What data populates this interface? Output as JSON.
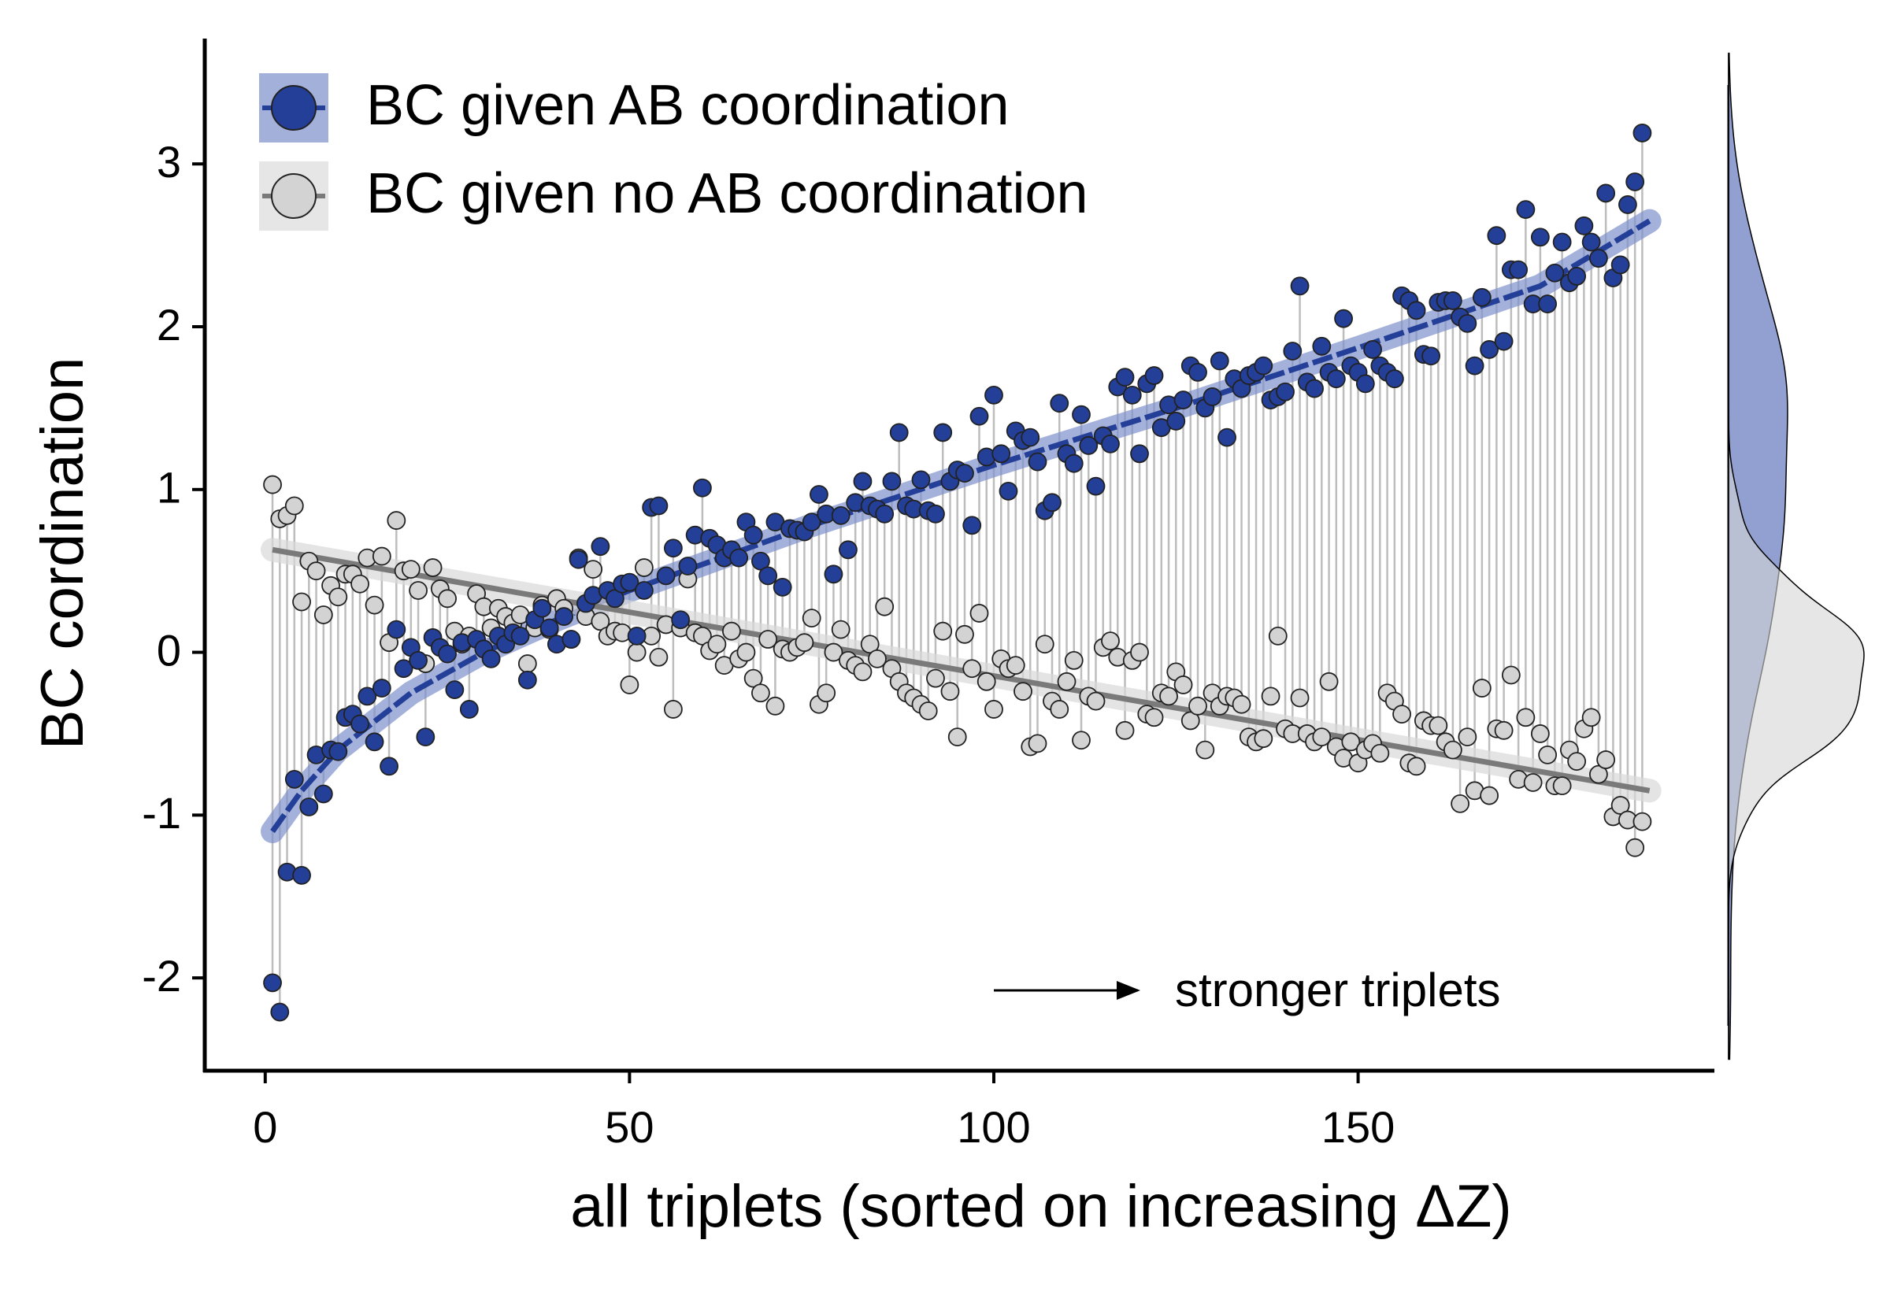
{
  "chart_data": {
    "type": "scatter",
    "xlabel": "all triplets (sorted on increasing ΔZ)",
    "ylabel": "BC cordination",
    "annotation": "stronger triplets",
    "legend": "top-left",
    "xlim": [
      -8.3,
      198.9
    ],
    "ylim": [
      -2.57,
      3.77
    ],
    "xticks": [
      0,
      50,
      100,
      150
    ],
    "yticks": [
      -2,
      -1,
      0,
      1,
      2,
      3
    ],
    "x": [
      1,
      2,
      3,
      4,
      5,
      6,
      7,
      8,
      9,
      10,
      11,
      12,
      13,
      14,
      15,
      16,
      17,
      18,
      19,
      20,
      21,
      22,
      23,
      24,
      25,
      26,
      27,
      28,
      29,
      30,
      31,
      32,
      33,
      34,
      35,
      36,
      37,
      38,
      39,
      40,
      41,
      42,
      43,
      44,
      45,
      46,
      47,
      48,
      49,
      50,
      51,
      52,
      53,
      54,
      55,
      56,
      57,
      58,
      59,
      60,
      61,
      62,
      63,
      64,
      65,
      66,
      67,
      68,
      69,
      70,
      71,
      72,
      73,
      74,
      75,
      76,
      77,
      78,
      79,
      80,
      81,
      82,
      83,
      84,
      85,
      86,
      87,
      88,
      89,
      90,
      91,
      92,
      93,
      94,
      95,
      96,
      97,
      98,
      99,
      100,
      101,
      102,
      103,
      104,
      105,
      106,
      107,
      108,
      109,
      110,
      111,
      112,
      113,
      114,
      115,
      116,
      117,
      118,
      119,
      120,
      121,
      122,
      123,
      124,
      125,
      126,
      127,
      128,
      129,
      130,
      131,
      132,
      133,
      134,
      135,
      136,
      137,
      138,
      139,
      140,
      141,
      142,
      143,
      144,
      145,
      146,
      147,
      148,
      149,
      150,
      151,
      152,
      153,
      154,
      155,
      156,
      157,
      158,
      159,
      160,
      161,
      162,
      163,
      164,
      165,
      166,
      167,
      168,
      169,
      170,
      171,
      172,
      173,
      174,
      175,
      176,
      177,
      178,
      179,
      180,
      181,
      182,
      183,
      184,
      185,
      186,
      187,
      188,
      189
    ],
    "series": [
      {
        "name": "BC given AB coordination",
        "color": "#233f98",
        "values": [
          -2.03,
          -2.21,
          -1.35,
          -0.78,
          -1.37,
          -0.95,
          -0.63,
          -0.87,
          -0.6,
          -0.61,
          -0.4,
          -0.38,
          -0.44,
          -0.27,
          -0.55,
          -0.22,
          -0.7,
          0.14,
          -0.1,
          0.03,
          -0.05,
          -0.52,
          0.09,
          0.03,
          -0.01,
          -0.23,
          0.06,
          -0.35,
          0.08,
          0.02,
          -0.04,
          0.1,
          0.05,
          0.12,
          0.1,
          -0.17,
          0.2,
          0.27,
          0.15,
          0.05,
          0.22,
          0.08,
          0.57,
          0.3,
          0.35,
          0.65,
          0.38,
          0.33,
          0.42,
          0.43,
          0.1,
          0.38,
          0.89,
          0.9,
          0.47,
          0.64,
          0.2,
          0.53,
          0.72,
          1.01,
          0.7,
          0.66,
          0.58,
          0.63,
          0.58,
          0.8,
          0.72,
          0.56,
          0.47,
          0.8,
          0.4,
          0.76,
          0.75,
          0.74,
          0.8,
          0.97,
          0.85,
          0.48,
          0.84,
          0.63,
          0.92,
          1.05,
          0.9,
          0.88,
          0.85,
          1.05,
          1.35,
          0.9,
          0.88,
          1.06,
          0.87,
          0.85,
          1.35,
          1.05,
          1.12,
          1.1,
          0.78,
          1.45,
          1.2,
          1.58,
          1.22,
          0.99,
          1.36,
          1.3,
          1.32,
          1.17,
          0.87,
          0.92,
          1.53,
          1.22,
          1.16,
          1.46,
          1.27,
          1.02,
          1.33,
          1.28,
          1.63,
          1.69,
          1.58,
          1.22,
          1.65,
          1.7,
          1.38,
          1.52,
          1.42,
          1.55,
          1.76,
          1.72,
          1.5,
          1.57,
          1.79,
          1.32,
          1.68,
          1.62,
          1.7,
          1.72,
          1.76,
          1.55,
          1.57,
          1.6,
          1.85,
          2.25,
          1.66,
          1.62,
          1.88,
          1.72,
          1.68,
          2.05,
          1.76,
          1.72,
          1.65,
          1.86,
          1.76,
          1.72,
          1.68,
          2.19,
          2.16,
          2.1,
          1.83,
          1.82,
          2.15,
          2.16,
          2.16,
          2.06,
          2.02,
          1.76,
          2.18,
          1.86,
          2.56,
          1.91,
          2.35,
          2.35,
          2.72,
          2.14,
          2.55,
          2.14,
          2.33,
          2.52,
          2.27,
          2.31,
          2.62,
          2.52,
          2.42,
          2.82,
          2.3,
          2.38,
          2.75,
          2.89,
          3.19
        ],
        "fit": {
          "x": [
            1,
            5,
            10,
            20,
            30,
            40,
            50,
            75,
            100,
            125,
            150,
            175,
            190
          ],
          "values": [
            -1.1,
            -0.85,
            -0.6,
            -0.25,
            0.0,
            0.2,
            0.38,
            0.78,
            1.15,
            1.5,
            1.87,
            2.25,
            2.65
          ]
        }
      },
      {
        "name": "BC given no AB coordination",
        "color": "#d3d3d3",
        "values": [
          1.03,
          0.82,
          0.84,
          0.9,
          0.31,
          0.56,
          0.5,
          0.23,
          0.41,
          0.34,
          0.48,
          0.48,
          0.42,
          0.58,
          0.29,
          0.59,
          0.06,
          0.81,
          0.5,
          0.51,
          0.38,
          -0.07,
          0.52,
          0.39,
          0.33,
          0.13,
          0.05,
          0.1,
          0.36,
          0.28,
          0.15,
          0.27,
          0.22,
          0.18,
          0.23,
          -0.07,
          0.15,
          0.29,
          0.14,
          0.33,
          0.27,
          0.08,
          0.58,
          0.22,
          0.51,
          0.19,
          0.1,
          0.13,
          0.12,
          -0.2,
          0.0,
          0.52,
          0.1,
          -0.03,
          0.17,
          -0.35,
          0.15,
          0.45,
          0.12,
          0.1,
          0.01,
          0.05,
          -0.08,
          0.13,
          -0.04,
          0.0,
          -0.16,
          -0.25,
          0.08,
          -0.33,
          0.02,
          0.0,
          0.03,
          0.06,
          0.21,
          -0.32,
          -0.25,
          0.0,
          0.14,
          -0.05,
          -0.08,
          -0.12,
          0.05,
          -0.04,
          0.28,
          -0.1,
          -0.18,
          -0.25,
          -0.28,
          -0.32,
          -0.36,
          -0.16,
          0.13,
          -0.24,
          -0.52,
          0.11,
          -0.1,
          0.24,
          -0.18,
          -0.35,
          -0.04,
          -0.1,
          -0.08,
          -0.24,
          -0.58,
          -0.56,
          0.05,
          -0.3,
          -0.35,
          -0.18,
          -0.05,
          -0.54,
          -0.27,
          -0.3,
          0.03,
          0.07,
          -0.03,
          -0.48,
          -0.05,
          0.0,
          -0.38,
          -0.4,
          -0.25,
          -0.27,
          -0.12,
          -0.2,
          -0.42,
          -0.33,
          -0.6,
          -0.25,
          -0.33,
          -0.27,
          -0.28,
          -0.32,
          -0.52,
          -0.55,
          -0.53,
          -0.27,
          0.1,
          -0.47,
          -0.5,
          -0.28,
          -0.5,
          -0.55,
          -0.52,
          -0.18,
          -0.58,
          -0.65,
          -0.55,
          -0.68,
          -0.6,
          -0.56,
          -0.62,
          -0.25,
          -0.3,
          -0.38,
          -0.68,
          -0.7,
          -0.42,
          -0.45,
          -0.45,
          -0.55,
          -0.6,
          -0.93,
          -0.52,
          -0.85,
          -0.22,
          -0.88,
          -0.47,
          -0.48,
          -0.14,
          -0.78,
          -0.4,
          -0.8,
          -0.5,
          -0.63,
          -0.82,
          -0.82,
          -0.6,
          -0.67,
          -0.47,
          -0.4,
          -0.75,
          -0.66,
          -1.01,
          -0.94,
          -1.03,
          -1.2,
          -1.04
        ],
        "fit": {
          "x": [
            1,
            190
          ],
          "values": [
            0.63,
            -0.85
          ]
        }
      }
    ]
  }
}
